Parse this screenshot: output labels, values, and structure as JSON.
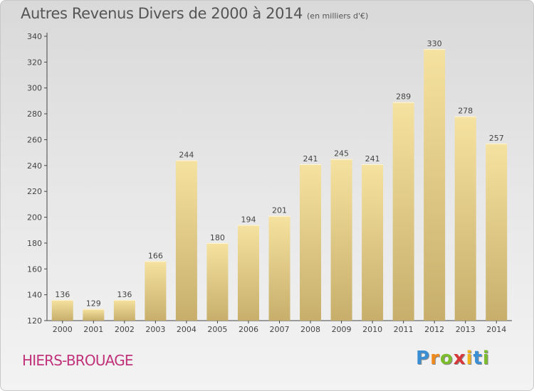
{
  "chart_data": {
    "type": "bar",
    "title": "Autres Revenus Divers de 2000 à 2014",
    "subtitle": "(en milliers d'€)",
    "categories": [
      "2000",
      "2001",
      "2002",
      "2003",
      "2004",
      "2005",
      "2006",
      "2007",
      "2008",
      "2009",
      "2010",
      "2011",
      "2012",
      "2013",
      "2014"
    ],
    "values": [
      136,
      129,
      136,
      166,
      244,
      180,
      194,
      201,
      241,
      245,
      241,
      289,
      330,
      278,
      257
    ],
    "ylim": [
      120,
      340
    ],
    "yticks": [
      120,
      140,
      160,
      180,
      200,
      220,
      240,
      260,
      280,
      300,
      320,
      340
    ],
    "grid": false,
    "bar_color": "#f2dc96"
  },
  "location": "HIERS-BROUAGE",
  "logo": {
    "letters": [
      "P",
      "r",
      "o",
      "x",
      "i",
      "t",
      "i"
    ],
    "colors": [
      "#3a8fd4",
      "#f08a1c",
      "#7dbb2f",
      "#d8373a",
      "#f0b41c",
      "#3a8fd4",
      "#7dbb2f"
    ]
  }
}
